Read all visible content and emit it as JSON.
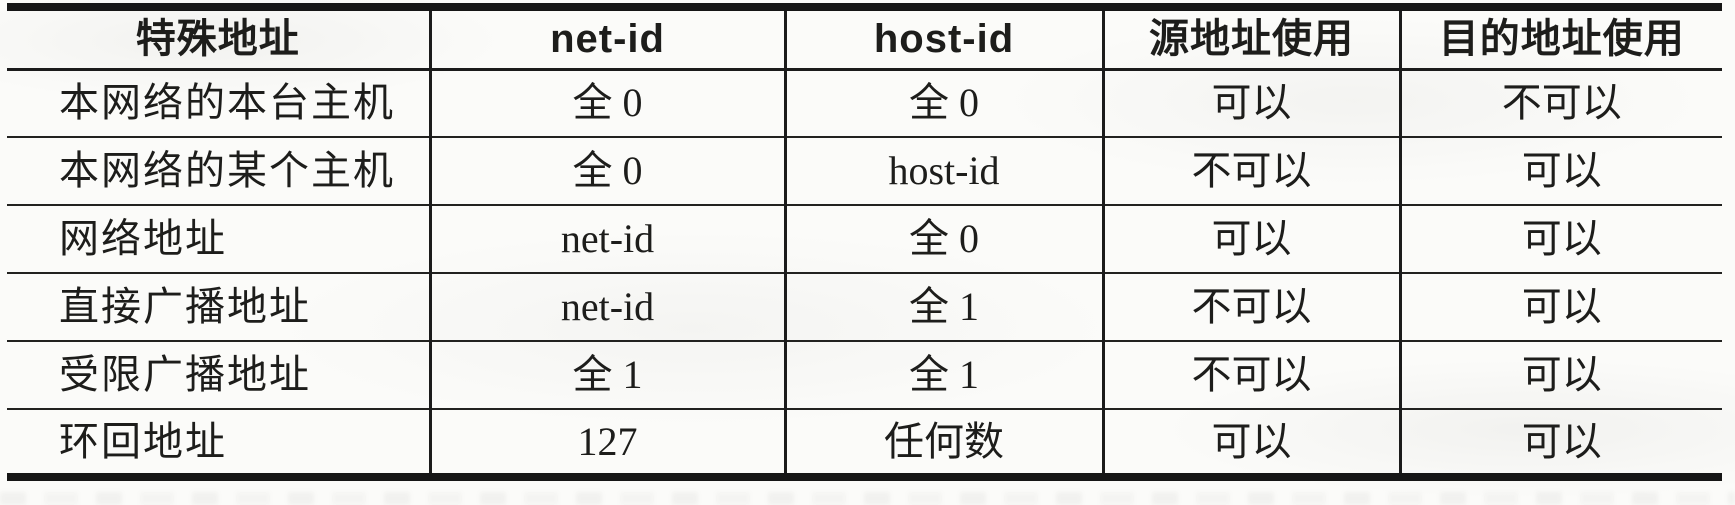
{
  "colors": {
    "ink": "#1d1d1b",
    "rule_line": "#161616",
    "paper": "#fbfbf9"
  },
  "table": {
    "columns": [
      "特殊地址",
      "net-id",
      "host-id",
      "源地址使用",
      "目的地址使用"
    ],
    "rows": [
      {
        "name": "本网络的本台主机",
        "net_id": "全 0",
        "host_id": "全 0",
        "source_use": "可以",
        "dest_use": "不可以"
      },
      {
        "name": "本网络的某个主机",
        "net_id": "全 0",
        "host_id": "host-id",
        "source_use": "不可以",
        "dest_use": "可以"
      },
      {
        "name": "网络地址",
        "net_id": "net-id",
        "host_id": "全 0",
        "source_use": "可以",
        "dest_use": "可以"
      },
      {
        "name": "直接广播地址",
        "net_id": "net-id",
        "host_id": "全 1",
        "source_use": "不可以",
        "dest_use": "可以"
      },
      {
        "name": "受限广播地址",
        "net_id": "全 1",
        "host_id": "全 1",
        "source_use": "不可以",
        "dest_use": "可以"
      },
      {
        "name": "环回地址",
        "net_id": "127",
        "host_id": "任何数",
        "source_use": "可以",
        "dest_use": "可以"
      }
    ]
  }
}
